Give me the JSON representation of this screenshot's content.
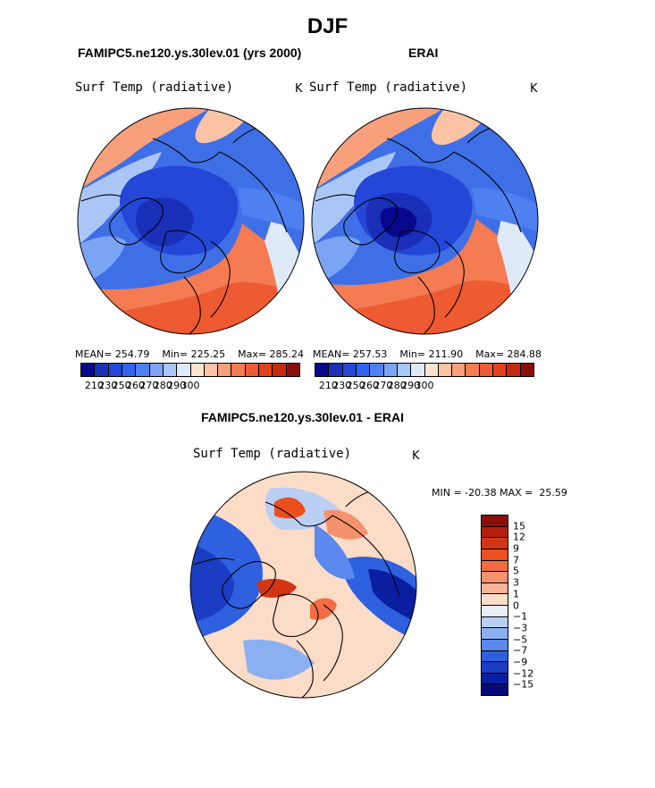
{
  "title": "DJF",
  "chart_data": [
    {
      "type": "heatmap",
      "projection": "polar",
      "title": "FAMIPC5.ne120.ys.30lev.01 (yrs 2000)",
      "variable": "Surf Temp (radiative)",
      "units": "K",
      "stats": {
        "mean": "254.79",
        "min": "225.25",
        "max": "285.24"
      },
      "stats_text": "MEAN= 254.79    Min= 225.25    Max= 285.24",
      "colorbar_ticks": [
        "210",
        "230",
        "250",
        "260",
        "270",
        "280",
        "290",
        "300"
      ]
    },
    {
      "type": "heatmap",
      "projection": "polar",
      "title": "ERAI",
      "variable": "Surf Temp (radiative)",
      "units": "K",
      "stats": {
        "mean": "257.53",
        "min": "211.90",
        "max": "284.88"
      },
      "stats_text": "MEAN= 257.53    Min= 211.90    Max= 284.88",
      "colorbar_ticks": [
        "210",
        "230",
        "250",
        "260",
        "270",
        "280",
        "290",
        "300"
      ]
    },
    {
      "type": "heatmap",
      "projection": "polar",
      "title": "FAMIPC5.ne120.ys.30lev.01 - ERAI",
      "variable": "Surf Temp (radiative)",
      "units": "K",
      "stats": {
        "min": "-20.38",
        "max": "25.59"
      },
      "stats_text": "MIN = -20.38 MAX =  25.59",
      "colorbar_ticks": [
        "15",
        "12",
        "9",
        "7",
        "5",
        "3",
        "1",
        "0",
        "−1",
        "−3",
        "−5",
        "−7",
        "−9",
        "−12",
        "−15"
      ]
    }
  ],
  "colors": {
    "abs_scale": [
      "#08088c",
      "#1a2fb8",
      "#2447d8",
      "#2f62ee",
      "#4e80f2",
      "#7ca4f5",
      "#a9c6f7",
      "#dfeaf9",
      "#fde2d2",
      "#fbc2a4",
      "#f8a07c",
      "#f47b52",
      "#ee5a31",
      "#e2411c",
      "#c72a0c",
      "#8a0e0a"
    ],
    "diff_scale": [
      "#8a0e0a",
      "#b3200c",
      "#d33612",
      "#ec4f1e",
      "#f26d43",
      "#f5916c",
      "#f8b497",
      "#fbdcc6",
      "#e8eef8",
      "#b9cff4",
      "#8bb0f1",
      "#5a88ec",
      "#2f60e0",
      "#1a3dc4",
      "#0c1ea0",
      "#060a7a"
    ]
  }
}
